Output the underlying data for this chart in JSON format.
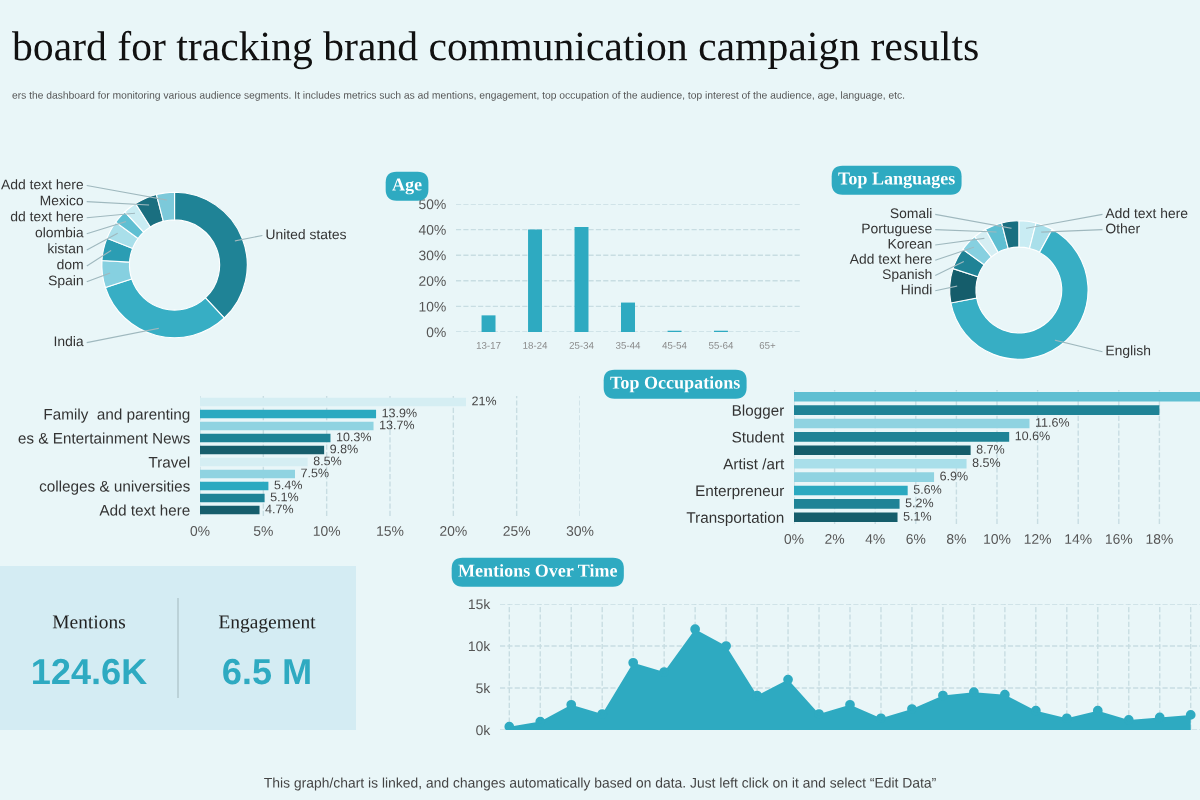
{
  "chart_data": [
    {
      "type": "donut",
      "title": "board for tracking brand communication campaign results",
      "subtitle": "ers the dashboard for monitoring various audience segments. It includes metrics such as ad mentions, engagement, top occupation of the audience, top interest of the audience, age, language, etc.",
      "annotations": [
        "This graph/chart is linked, and changes automatically based on data. Just left click on it and select “Edit Data”"
      ],
      "categories": [
        "United states",
        "India",
        "Spain",
        "dom",
        "kistan",
        "olombia",
        "dd text here",
        "Mexico",
        "Add text here"
      ],
      "values": [
        38,
        32,
        6,
        5,
        4,
        3,
        3,
        5,
        4
      ],
      "colors": [
        "#1f8396",
        "#37aec4",
        "#86d0e0",
        "#2b9db3",
        "#a9dfea",
        "#5fbfd2",
        "#c9ecf3",
        "#1a6f80",
        "#7cc9da"
      ]
    },
    {
      "type": "bar",
      "title": "Age",
      "categories": [
        "13-17",
        "18-24",
        "25-34",
        "35-44",
        "45-54",
        "55-64",
        "65+"
      ],
      "values": [
        6.5,
        40,
        41,
        11.5,
        0.5,
        0.5,
        0
      ],
      "color": "#2eaac1",
      "ylim": [
        0,
        50
      ],
      "yticks": [
        {
          "value": 0,
          "label": "0%"
        },
        {
          "value": 10,
          "label": "10%"
        },
        {
          "value": 20,
          "label": "20%"
        },
        {
          "value": 30,
          "label": "30%"
        },
        {
          "value": 40,
          "label": "40%"
        },
        {
          "value": 50,
          "label": "50%"
        }
      ],
      "grid": "y"
    },
    {
      "type": "donut",
      "title": "Top Languages",
      "categories": [
        "Add text here",
        "Other",
        "English",
        "Hindi",
        "Spanish",
        "Add text here",
        "Korean",
        "Portuguese",
        "Somali"
      ],
      "values": [
        4,
        4,
        64,
        8,
        5,
        4,
        3,
        4,
        4
      ],
      "colors": [
        "#c9ecf3",
        "#a9dfea",
        "#37aec4",
        "#155d6b",
        "#1f8396",
        "#86d0e0",
        "#d5eef3",
        "#5fbfd2",
        "#1a6f80"
      ]
    },
    {
      "type": "bar",
      "orientation": "horizontal",
      "categories": [
        null,
        "Family  and parenting",
        null,
        "es & Entertainment News",
        null,
        "Travel",
        null,
        "colleges & universities",
        null,
        "Add text here"
      ],
      "values": [
        21,
        13.9,
        13.7,
        10.3,
        9.8,
        8.5,
        7.5,
        5.4,
        5.1,
        4.7
      ],
      "value_labels": [
        "21%",
        "13.9%",
        "13.7%",
        "10.3%",
        "9.8%",
        "8.5%",
        "7.5%",
        "5.4%",
        "5.1%",
        "4.7%"
      ],
      "colors": [
        "#d5eef3",
        "#2ba9c0",
        "#8fd3e1",
        "#1f8396",
        "#175e6c",
        "#d5eef3",
        "#8fd3e1",
        "#2ba9c0",
        "#1f8396",
        "#175e6c"
      ],
      "xlim": [
        0,
        30
      ],
      "xticks": [
        {
          "value": 0,
          "label": "0%"
        },
        {
          "value": 5,
          "label": "5%"
        },
        {
          "value": 10,
          "label": "10%"
        },
        {
          "value": 15,
          "label": "15%"
        },
        {
          "value": 20,
          "label": "20%"
        },
        {
          "value": 25,
          "label": "25%"
        },
        {
          "value": 30,
          "label": "30%"
        }
      ],
      "grid": "x"
    },
    {
      "type": "bar",
      "orientation": "horizontal",
      "title": "Top Occupations",
      "categories": [
        null,
        "Blogger",
        null,
        "Student",
        null,
        "Artist /art",
        null,
        "Enterpreneur",
        null,
        "Transportation"
      ],
      "values": [
        20,
        18,
        11.6,
        10.6,
        8.7,
        8.5,
        6.9,
        5.6,
        5.2,
        5.1
      ],
      "value_labels": [
        null,
        null,
        "11.6%",
        "10.6%",
        "8.7%",
        "8.5%",
        "6.9%",
        "5.6%",
        "5.2%",
        "5.1%"
      ],
      "colors": [
        "#5fbfd2",
        "#1f8396",
        "#8fd3e1",
        "#1f8396",
        "#155d6b",
        "#a9dfea",
        "#8fd3e1",
        "#2ba9c0",
        "#1f8396",
        "#155d6b"
      ],
      "xlim": [
        0,
        20
      ],
      "xticks": [
        {
          "value": 0,
          "label": "0%"
        },
        {
          "value": 2,
          "label": "2%"
        },
        {
          "value": 4,
          "label": "4%"
        },
        {
          "value": 6,
          "label": "6%"
        },
        {
          "value": 8,
          "label": "8%"
        },
        {
          "value": 10,
          "label": "10%"
        },
        {
          "value": 12,
          "label": "12%"
        },
        {
          "value": 14,
          "label": "14%"
        },
        {
          "value": 16,
          "label": "16%"
        },
        {
          "value": 18,
          "label": "18%"
        }
      ],
      "grid": "x"
    },
    {
      "type": "other",
      "categories": [
        "Mentions",
        "Engagement"
      ],
      "value_labels": [
        "124.6K",
        "6.5 M"
      ],
      "color": "#2eaac1"
    },
    {
      "type": "area",
      "title": "Mentions Over Time",
      "categories": [
        null,
        null,
        null,
        null,
        null,
        null,
        null,
        null,
        null,
        null,
        null,
        null,
        null,
        null,
        null,
        null,
        null,
        null,
        null,
        null,
        null,
        null,
        null
      ],
      "values": [
        0.4,
        1.0,
        3.0,
        1.9,
        8.0,
        6.9,
        12.0,
        10.0,
        4.1,
        6.0,
        1.9,
        3.0,
        1.4,
        2.5,
        4.1,
        4.5,
        4.2,
        2.3,
        1.4,
        2.3,
        1.2,
        1.5,
        1.8
      ],
      "color": "#2eaac1",
      "marker": "circle",
      "ylim": [
        0,
        15
      ],
      "yticks": [
        {
          "value": 0,
          "label": "0k"
        },
        {
          "value": 5,
          "label": "5k"
        },
        {
          "value": 10,
          "label": "10k"
        },
        {
          "value": 15,
          "label": "15k"
        }
      ],
      "grid": true
    }
  ]
}
